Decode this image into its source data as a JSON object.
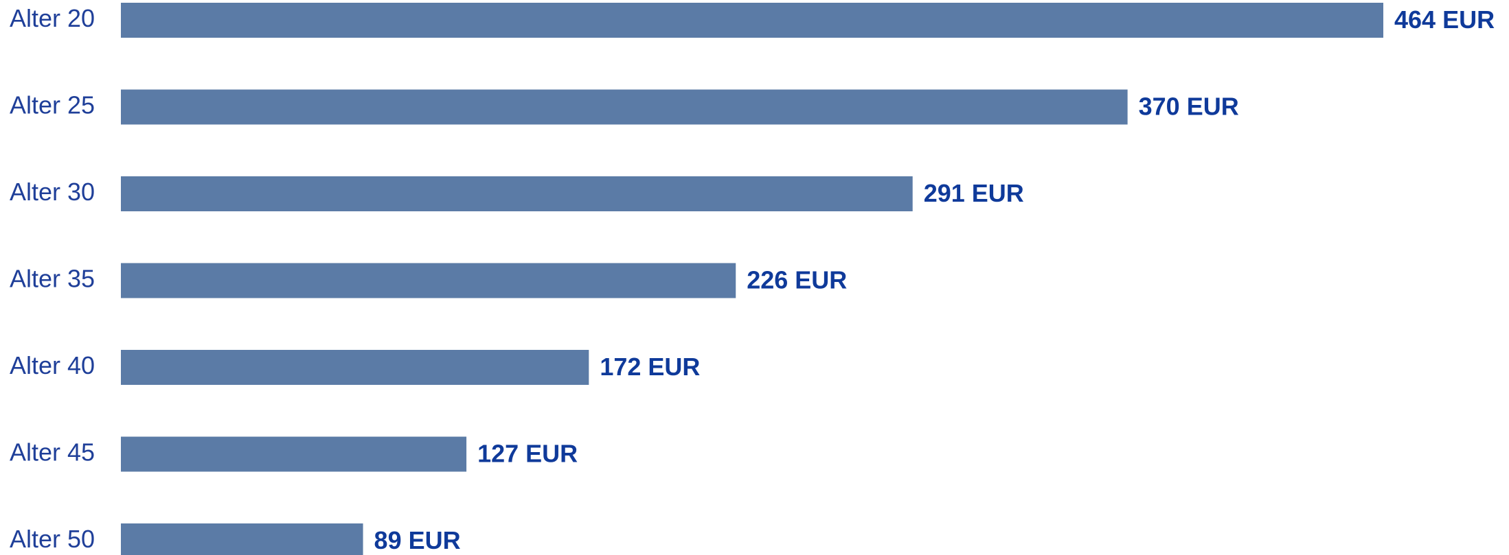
{
  "chart_data": {
    "type": "bar",
    "orientation": "horizontal",
    "categories": [
      "Alter 20",
      "Alter 25",
      "Alter 30",
      "Alter 35",
      "Alter 40",
      "Alter 45",
      "Alter 50"
    ],
    "values": [
      464,
      370,
      291,
      226,
      172,
      127,
      89
    ],
    "value_labels": [
      "464 EUR",
      "370 EUR",
      "291 EUR",
      "226 EUR",
      "172 EUR",
      "127 EUR",
      "89 EUR"
    ],
    "color": "#5b7ba6"
  }
}
